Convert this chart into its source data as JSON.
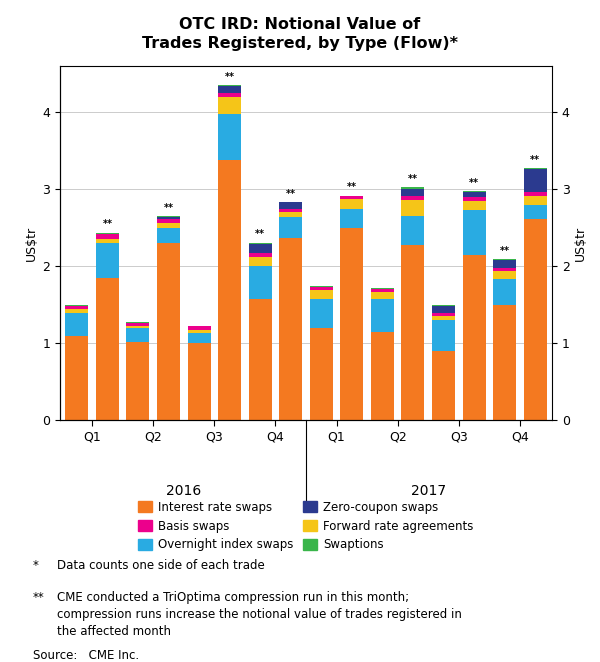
{
  "title": "OTC IRD: Notional Value of\nTrades Registered, by Type (Flow)*",
  "ylabel": "US$tr",
  "ylim": [
    0,
    4.6
  ],
  "yticks": [
    0,
    1,
    2,
    3,
    4
  ],
  "quarters": [
    "Q1",
    "Q2",
    "Q3",
    "Q4",
    "Q1",
    "Q2",
    "Q3",
    "Q4"
  ],
  "bar_groups": [
    {
      "irs": 1.1,
      "ois": 0.3,
      "fra": 0.04,
      "basis": 0.05,
      "zcs": 0.0,
      "swaptions": 0.01,
      "star": false
    },
    {
      "irs": 1.85,
      "ois": 0.45,
      "fra": 0.05,
      "basis": 0.07,
      "zcs": 0.0,
      "swaptions": 0.02,
      "star": true
    },
    {
      "irs": 1.02,
      "ois": 0.18,
      "fra": 0.03,
      "basis": 0.04,
      "zcs": 0.0,
      "swaptions": 0.01,
      "star": false
    },
    {
      "irs": 2.3,
      "ois": 0.2,
      "fra": 0.06,
      "basis": 0.06,
      "zcs": 0.02,
      "swaptions": 0.01,
      "star": true
    },
    {
      "irs": 1.0,
      "ois": 0.14,
      "fra": 0.04,
      "basis": 0.04,
      "zcs": 0.0,
      "swaptions": 0.01,
      "star": false
    },
    {
      "irs": 3.38,
      "ois": 0.6,
      "fra": 0.22,
      "basis": 0.05,
      "zcs": 0.09,
      "swaptions": 0.01,
      "star": true
    },
    {
      "irs": 1.58,
      "ois": 0.42,
      "fra": 0.12,
      "basis": 0.05,
      "zcs": 0.12,
      "swaptions": 0.02,
      "star": true
    },
    {
      "irs": 2.37,
      "ois": 0.27,
      "fra": 0.07,
      "basis": 0.04,
      "zcs": 0.08,
      "swaptions": 0.01,
      "star": true
    },
    {
      "irs": 1.2,
      "ois": 0.37,
      "fra": 0.12,
      "basis": 0.04,
      "zcs": 0.0,
      "swaptions": 0.01,
      "star": false
    },
    {
      "irs": 2.5,
      "ois": 0.25,
      "fra": 0.12,
      "basis": 0.04,
      "zcs": 0.0,
      "swaptions": 0.01,
      "star": true
    },
    {
      "irs": 1.15,
      "ois": 0.42,
      "fra": 0.1,
      "basis": 0.04,
      "zcs": 0.0,
      "swaptions": 0.01,
      "star": false
    },
    {
      "irs": 2.28,
      "ois": 0.38,
      "fra": 0.2,
      "basis": 0.05,
      "zcs": 0.1,
      "swaptions": 0.02,
      "star": true
    },
    {
      "irs": 0.9,
      "ois": 0.4,
      "fra": 0.05,
      "basis": 0.04,
      "zcs": 0.1,
      "swaptions": 0.01,
      "star": false
    },
    {
      "irs": 2.15,
      "ois": 0.58,
      "fra": 0.12,
      "basis": 0.05,
      "zcs": 0.07,
      "swaptions": 0.01,
      "star": true
    },
    {
      "irs": 1.5,
      "ois": 0.34,
      "fra": 0.1,
      "basis": 0.04,
      "zcs": 0.1,
      "swaptions": 0.02,
      "star": true
    },
    {
      "irs": 2.62,
      "ois": 0.18,
      "fra": 0.12,
      "basis": 0.05,
      "zcs": 0.3,
      "swaptions": 0.01,
      "star": true
    }
  ],
  "colors": {
    "irs": "#F47920",
    "ois": "#29ABE2",
    "fra": "#F5C518",
    "basis": "#EC008C",
    "zcs": "#2B3A8F",
    "swaptions": "#39B54A"
  },
  "legend_labels": {
    "irs": "Interest rate swaps",
    "ois": "Overnight index swaps",
    "fra": "Forward rate agreements",
    "basis": "Basis swaps",
    "zcs": "Zero-coupon swaps",
    "swaptions": "Swaptions"
  }
}
